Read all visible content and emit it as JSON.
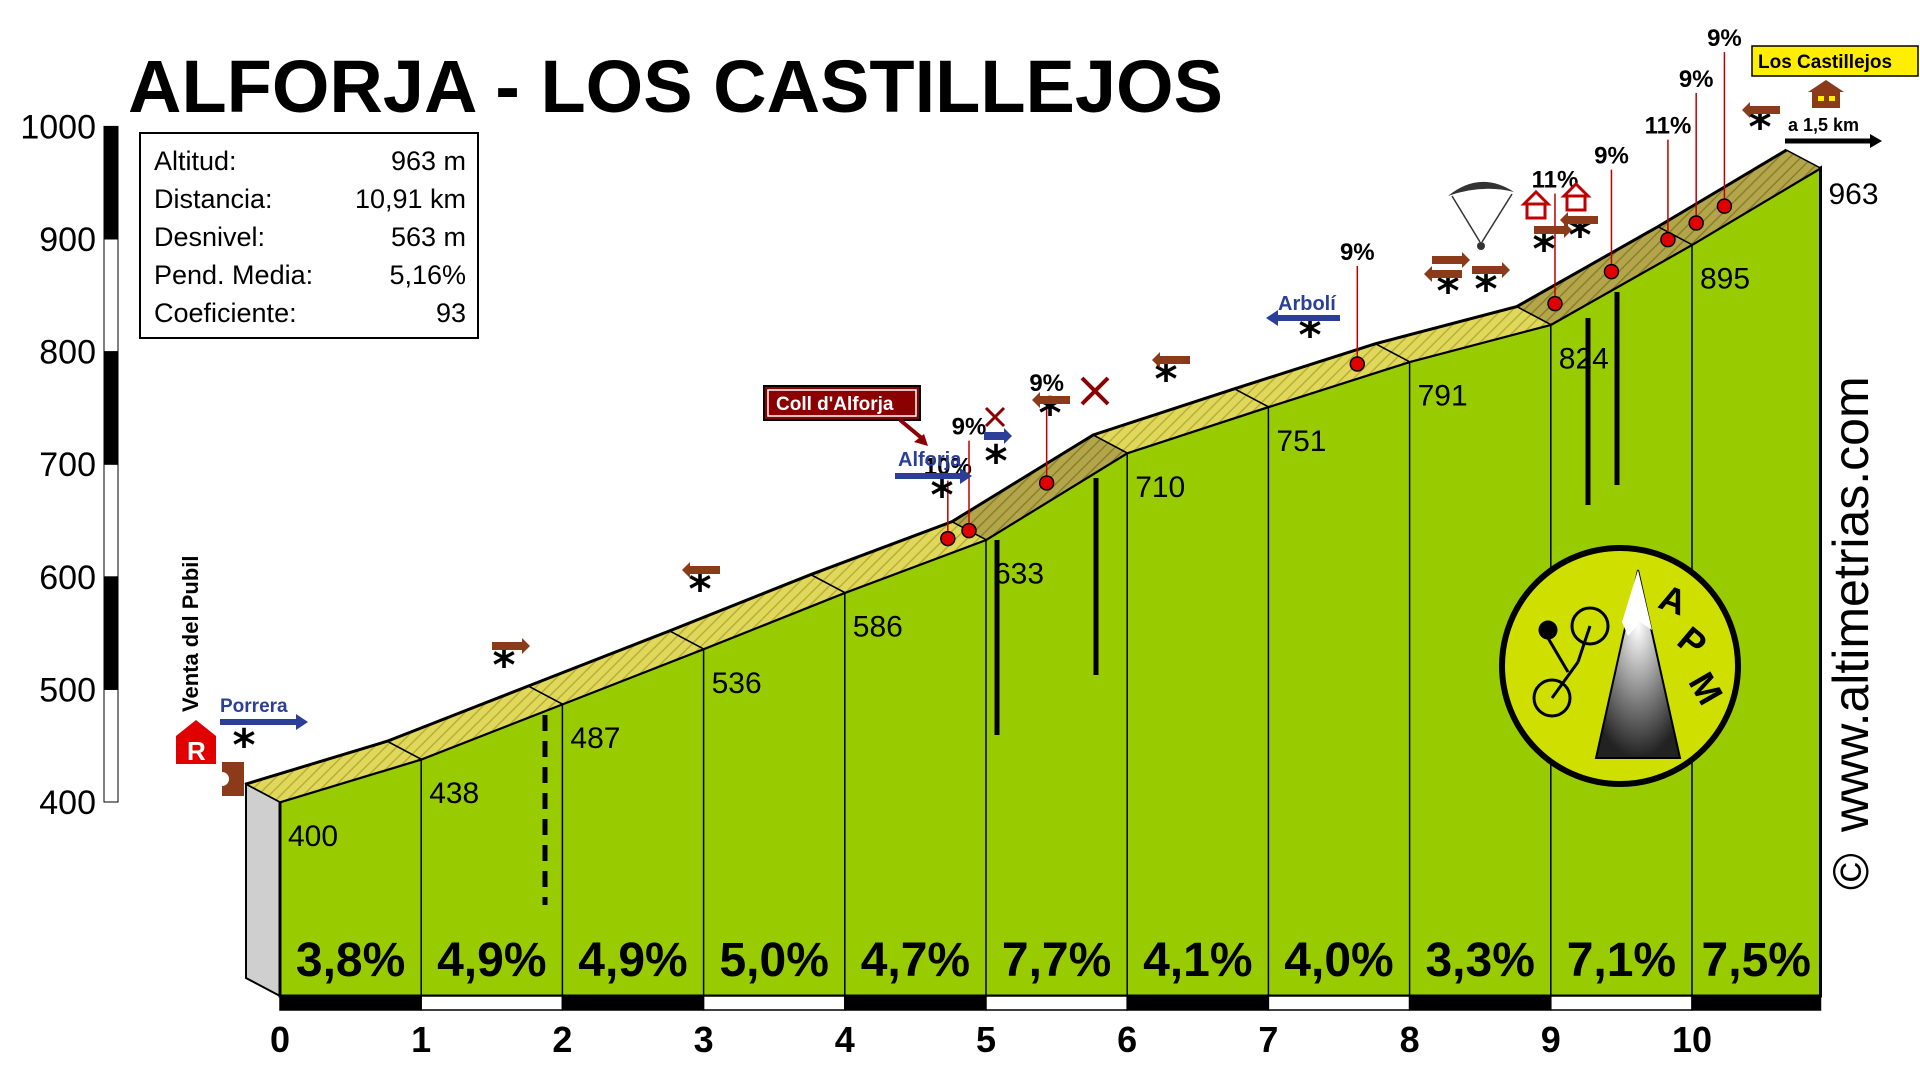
{
  "title": "ALFORJA - LOS CASTILLEJOS",
  "stats": [
    {
      "label": "Altitud:",
      "value": "963 m"
    },
    {
      "label": "Distancia:",
      "value": "10,91 km"
    },
    {
      "label": "Desnivel:",
      "value": "563 m"
    },
    {
      "label": "Pend. Media:",
      "value": "5,16%"
    },
    {
      "label": "Coeficiente:",
      "value": "93"
    }
  ],
  "labels": {
    "start_place": "Venta del Pubil",
    "dir_porrera": "Porrera",
    "dir_alforja": "Alforja",
    "dir_arboli": "Arbolí",
    "coll": "Coll d'Alforja",
    "summit": "Los Castillejos",
    "summit_distance": "a 1,5 km",
    "restaurant_letter": "R",
    "website": "www.altimetrias.com",
    "copyright": "©",
    "logo_letters": [
      "A",
      "P",
      "M"
    ]
  },
  "steep_marks": [
    {
      "km": 4.85,
      "label": "10%"
    },
    {
      "km": 5.0,
      "label": "9%"
    },
    {
      "km": 5.55,
      "label": "9%"
    },
    {
      "km": 7.75,
      "label": "9%"
    },
    {
      "km": 9.15,
      "label": "11%"
    },
    {
      "km": 9.55,
      "label": "9%"
    },
    {
      "km": 9.95,
      "label": "11%"
    },
    {
      "km": 10.15,
      "label": "9%"
    },
    {
      "km": 10.35,
      "label": "9%"
    }
  ],
  "colors": {
    "fill": "#99cc00",
    "road": "#e0d85a",
    "steep": "#a89a40",
    "side": "#cfcfcf",
    "accent_blue": "#2b3f99",
    "accent_red": "#8b0000",
    "brown": "#8b3a1a",
    "summit_box": "#ffee00"
  },
  "chart_data": {
    "type": "area",
    "title": "ALFORJA - LOS CASTILLEJOS",
    "xlabel": "",
    "ylabel": "",
    "x_ticks": [
      "0",
      "1",
      "2",
      "3",
      "4",
      "5",
      "6",
      "7",
      "8",
      "9",
      "10"
    ],
    "y_ticks": [
      "400",
      "500",
      "600",
      "700",
      "800",
      "900",
      "1000"
    ],
    "xlim": [
      0,
      10.91
    ],
    "ylim": [
      400,
      1000
    ],
    "series": [
      {
        "x": [
          0,
          1,
          2,
          3,
          4,
          5,
          6,
          7,
          8,
          9,
          10,
          10.91
        ],
        "y": [
          400,
          438,
          487,
          536,
          586,
          633,
          710,
          751,
          791,
          824,
          895,
          963
        ]
      }
    ],
    "gradients": [
      "3,8%",
      "4,9%",
      "4,9%",
      "5,0%",
      "4,7%",
      "7,7%",
      "4,1%",
      "4,0%",
      "3,3%",
      "7,1%",
      "7,5%"
    ],
    "grid": false
  }
}
